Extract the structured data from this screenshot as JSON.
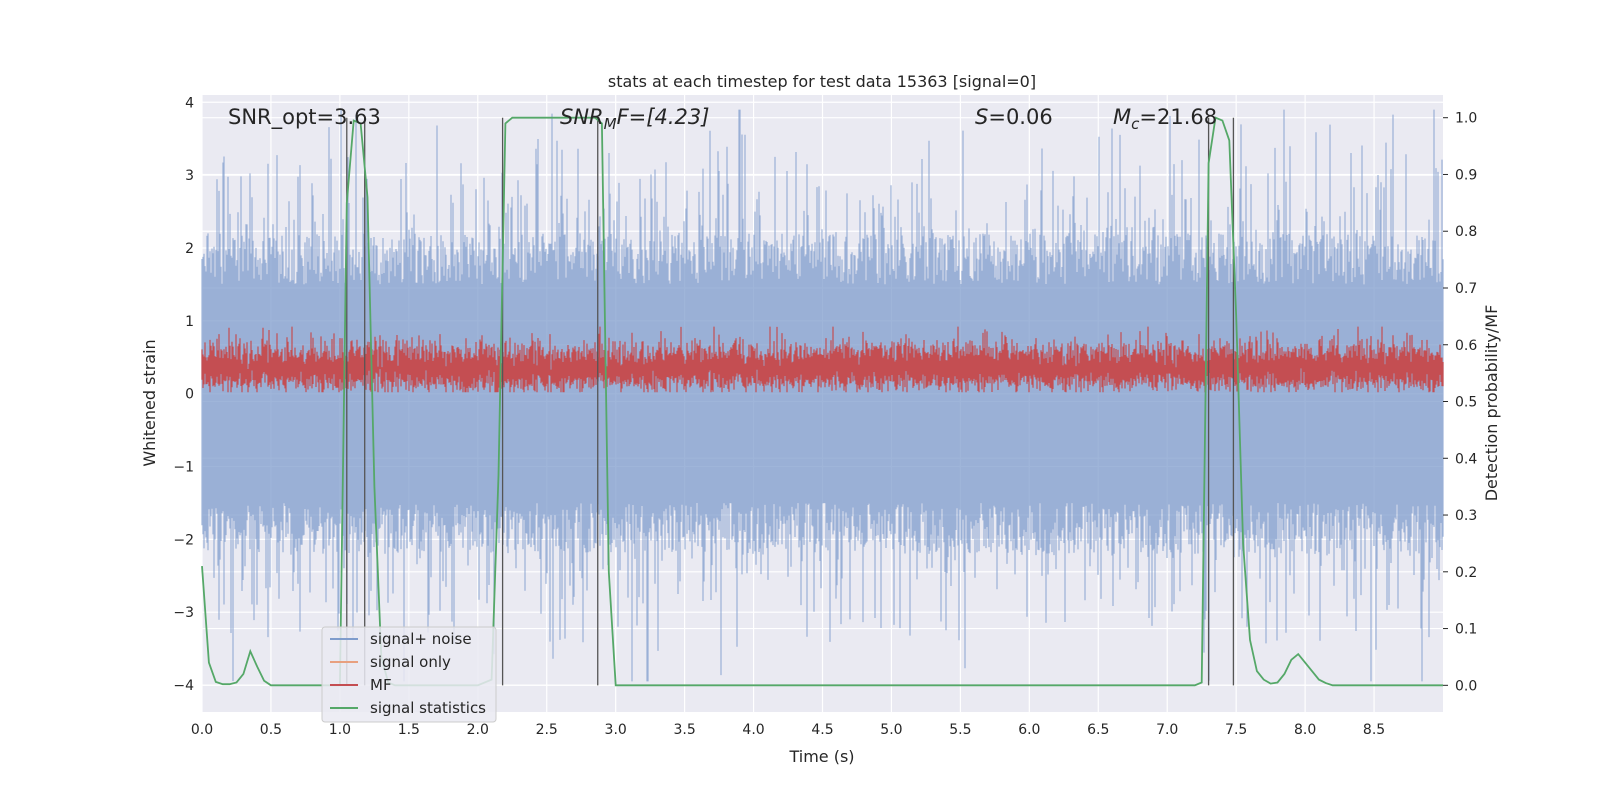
{
  "chart_data": {
    "type": "line",
    "title": "stats at each timestep for test data 15363 [signal=0]",
    "xlabel": "Time (s)",
    "ylabel_left": "Whitened strain",
    "ylabel_right": "Detection probability/MF",
    "xlim": [
      0.0,
      9.0
    ],
    "ylim_left": [
      -4.37,
      4.1
    ],
    "ylim_right": [
      -0.047,
      1.04
    ],
    "x_ticks": [
      "0.0",
      "0.5",
      "1.0",
      "1.5",
      "2.0",
      "2.5",
      "3.0",
      "3.5",
      "4.0",
      "4.5",
      "5.0",
      "5.5",
      "6.0",
      "6.5",
      "7.0",
      "7.5",
      "8.0",
      "8.5"
    ],
    "y_left_ticks": [
      "4",
      "3",
      "2",
      "1",
      "0",
      "−1",
      "−2",
      "−3",
      "−4"
    ],
    "y_right_ticks": [
      "1.0",
      "0.9",
      "0.8",
      "0.7",
      "0.6",
      "0.5",
      "0.4",
      "0.3",
      "0.2",
      "0.1",
      "0.0"
    ],
    "annotations": {
      "snr_opt": "SNR_opt=3.63",
      "snr_mf_main": "SNR",
      "snr_mf_sub": "M",
      "snr_mf_rest": "F=[4.23]",
      "s_italic": "S",
      "s_rest": "=0.06",
      "mc_main": "M",
      "mc_sub": "c",
      "mc_rest": "=21.68"
    },
    "series": [
      {
        "name": "signal+ noise",
        "color": "#7f9ccc",
        "description": "whitened strain noise, roughly within ±2 with spikes to ±3.9"
      },
      {
        "name": "signal only",
        "color": "#e8a07f",
        "values": []
      },
      {
        "name": "MF",
        "color": "#c44e52",
        "description": "matched filter output around 0.3, range 0 to 0.9"
      },
      {
        "name": "signal statistics",
        "color": "#55a868",
        "x": [
          0.0,
          0.05,
          0.1,
          0.15,
          0.2,
          0.25,
          0.3,
          0.35,
          0.4,
          0.45,
          0.5,
          0.55,
          0.6,
          0.9,
          1.0,
          1.05,
          1.1,
          1.15,
          1.2,
          1.25,
          1.3,
          1.35,
          1.4,
          2.0,
          2.1,
          2.15,
          2.2,
          2.25,
          2.3,
          2.85,
          2.9,
          2.95,
          3.0,
          3.05,
          7.2,
          7.25,
          7.3,
          7.35,
          7.4,
          7.45,
          7.5,
          7.55,
          7.6,
          7.65,
          7.7,
          7.75,
          7.8,
          7.85,
          7.9,
          7.95,
          8.0,
          8.05,
          8.1,
          8.15,
          8.2,
          8.25,
          8.3,
          8.35,
          8.4,
          8.5,
          9.0
        ],
        "values": [
          0.21,
          0.04,
          0.006,
          0.002,
          0.002,
          0.005,
          0.02,
          0.06,
          0.033,
          0.008,
          0.0,
          0.0,
          0.0,
          0.0,
          0.0,
          0.85,
          0.995,
          0.99,
          0.86,
          0.35,
          0.05,
          0.005,
          0.0,
          0.0,
          0.01,
          0.37,
          0.99,
          1.0,
          1.0,
          1.0,
          0.99,
          0.2,
          0.0,
          0.0,
          0.0,
          0.005,
          0.92,
          1.0,
          0.995,
          0.96,
          0.65,
          0.25,
          0.08,
          0.025,
          0.01,
          0.003,
          0.005,
          0.02,
          0.045,
          0.055,
          0.04,
          0.025,
          0.01,
          0.004,
          0.0,
          0.0,
          0.0,
          0.0,
          0.0,
          0.0,
          0.0
        ]
      }
    ],
    "vertical_lines_x": [
      1.05,
      1.18,
      2.18,
      2.87,
      7.3,
      7.48
    ],
    "vertical_lines_range_right": [
      0.0,
      1.0
    ],
    "noise_amplitude_hint": 2.0,
    "mf_level_hint": 0.3,
    "legend": {
      "placement": "lower-left",
      "entries": [
        "signal+ noise",
        "signal only",
        "MF",
        "signal statistics"
      ]
    },
    "grid": true
  }
}
